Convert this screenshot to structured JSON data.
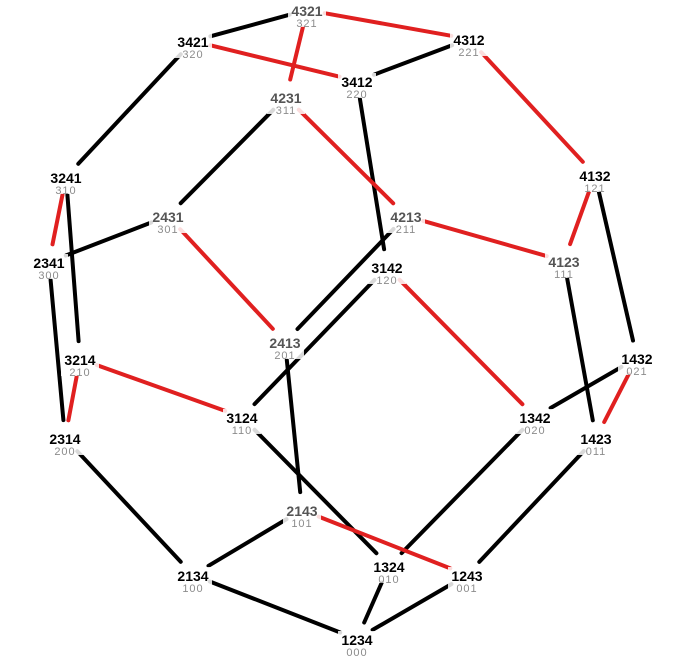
{
  "colors": {
    "background": "#ffffff",
    "black_edge": "#000000",
    "red_edge": "#e02020",
    "label_dark": "#000000",
    "label_grey": "#555555",
    "code_grey": "#8c8c8c"
  },
  "nodes": [
    {
      "id": "4321",
      "label": "4321",
      "code": "321",
      "tone": "grey"
    },
    {
      "id": "3421",
      "label": "3421",
      "code": "320",
      "tone": "dark"
    },
    {
      "id": "4312",
      "label": "4312",
      "code": "221",
      "tone": "dark"
    },
    {
      "id": "3412",
      "label": "3412",
      "code": "220",
      "tone": "dark"
    },
    {
      "id": "4231",
      "label": "4231",
      "code": "311",
      "tone": "grey"
    },
    {
      "id": "3241",
      "label": "3241",
      "code": "310",
      "tone": "dark"
    },
    {
      "id": "4132",
      "label": "4132",
      "code": "121",
      "tone": "dark"
    },
    {
      "id": "2431",
      "label": "2431",
      "code": "301",
      "tone": "grey"
    },
    {
      "id": "4213",
      "label": "4213",
      "code": "211",
      "tone": "grey"
    },
    {
      "id": "2341",
      "label": "2341",
      "code": "300",
      "tone": "dark"
    },
    {
      "id": "3142",
      "label": "3142",
      "code": "120",
      "tone": "dark"
    },
    {
      "id": "4123",
      "label": "4123",
      "code": "111",
      "tone": "grey"
    },
    {
      "id": "2413",
      "label": "2413",
      "code": "201",
      "tone": "grey"
    },
    {
      "id": "1432",
      "label": "1432",
      "code": "021",
      "tone": "dark"
    },
    {
      "id": "3214",
      "label": "3214",
      "code": "210",
      "tone": "dark"
    },
    {
      "id": "3124",
      "label": "3124",
      "code": "110",
      "tone": "dark"
    },
    {
      "id": "1342",
      "label": "1342",
      "code": "020",
      "tone": "dark"
    },
    {
      "id": "2314",
      "label": "2314",
      "code": "200",
      "tone": "dark"
    },
    {
      "id": "1423",
      "label": "1423",
      "code": "011",
      "tone": "dark"
    },
    {
      "id": "2143",
      "label": "2143",
      "code": "101",
      "tone": "grey"
    },
    {
      "id": "2134",
      "label": "2134",
      "code": "100",
      "tone": "dark"
    },
    {
      "id": "1324",
      "label": "1324",
      "code": "010",
      "tone": "dark"
    },
    {
      "id": "1243",
      "label": "1243",
      "code": "001",
      "tone": "dark"
    },
    {
      "id": "1234",
      "label": "1234",
      "code": "000",
      "tone": "dark"
    }
  ],
  "edges": [
    {
      "from": "4321",
      "to": "3421",
      "color": "black"
    },
    {
      "from": "4321",
      "to": "4312",
      "color": "red"
    },
    {
      "from": "4321",
      "to": "4231",
      "color": "red"
    },
    {
      "from": "3421",
      "to": "3412",
      "color": "red"
    },
    {
      "from": "3421",
      "to": "3241",
      "color": "black"
    },
    {
      "from": "4312",
      "to": "3412",
      "color": "black"
    },
    {
      "from": "4312",
      "to": "4132",
      "color": "red"
    },
    {
      "from": "3412",
      "to": "3142",
      "color": "black"
    },
    {
      "from": "4231",
      "to": "2431",
      "color": "black"
    },
    {
      "from": "4231",
      "to": "4213",
      "color": "red"
    },
    {
      "from": "3241",
      "to": "2341",
      "color": "red"
    },
    {
      "from": "3241",
      "to": "3214",
      "color": "black"
    },
    {
      "from": "4132",
      "to": "4123",
      "color": "red"
    },
    {
      "from": "4132",
      "to": "1432",
      "color": "black"
    },
    {
      "from": "2431",
      "to": "2341",
      "color": "black"
    },
    {
      "from": "2431",
      "to": "2413",
      "color": "red"
    },
    {
      "from": "4213",
      "to": "4123",
      "color": "red"
    },
    {
      "from": "4213",
      "to": "2413",
      "color": "black"
    },
    {
      "from": "2341",
      "to": "2314",
      "color": "black"
    },
    {
      "from": "3142",
      "to": "3124",
      "color": "black"
    },
    {
      "from": "3142",
      "to": "1342",
      "color": "red"
    },
    {
      "from": "4123",
      "to": "1423",
      "color": "black"
    },
    {
      "from": "2413",
      "to": "2143",
      "color": "black"
    },
    {
      "from": "1432",
      "to": "1342",
      "color": "black"
    },
    {
      "from": "1432",
      "to": "1423",
      "color": "red"
    },
    {
      "from": "3214",
      "to": "2314",
      "color": "red"
    },
    {
      "from": "3214",
      "to": "3124",
      "color": "red"
    },
    {
      "from": "3124",
      "to": "1324",
      "color": "black"
    },
    {
      "from": "1342",
      "to": "1324",
      "color": "black"
    },
    {
      "from": "2314",
      "to": "2134",
      "color": "black"
    },
    {
      "from": "1423",
      "to": "1243",
      "color": "black"
    },
    {
      "from": "2143",
      "to": "2134",
      "color": "black"
    },
    {
      "from": "2143",
      "to": "1243",
      "color": "red"
    },
    {
      "from": "2134",
      "to": "1234",
      "color": "black"
    },
    {
      "from": "1324",
      "to": "1234",
      "color": "black"
    },
    {
      "from": "1243",
      "to": "1234",
      "color": "black"
    }
  ]
}
